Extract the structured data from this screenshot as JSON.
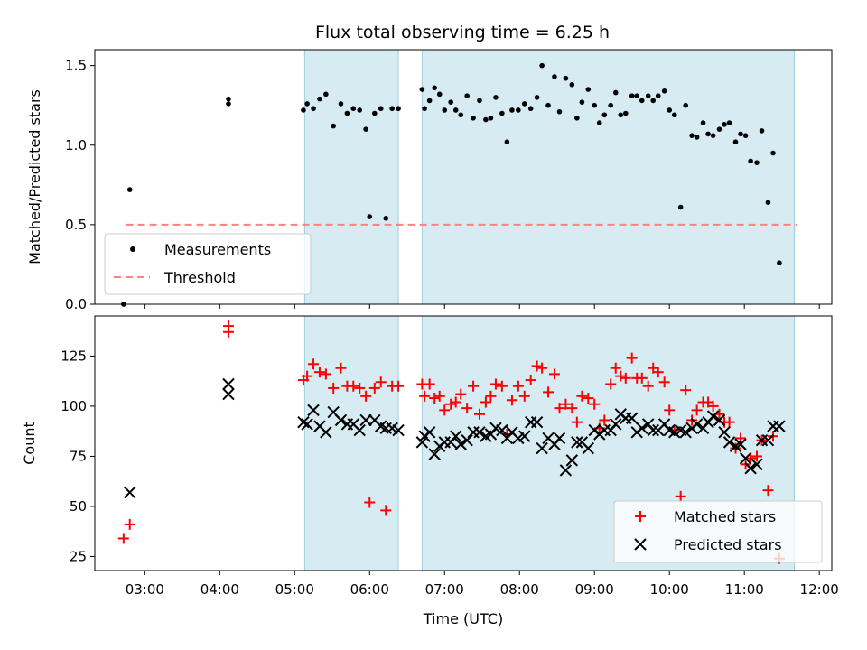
{
  "title": "Flux total observing time = 6.25 h",
  "chart_data": [
    {
      "type": "scatter",
      "ylabel": "Matched/Predicted stars",
      "xlabel": "",
      "ylim": [
        0,
        1.6
      ],
      "yticks": [
        "0.0",
        "0.5",
        "1.0",
        "1.5"
      ],
      "legend_position": "lower-left",
      "threshold": {
        "name": "Threshold",
        "y": 0.5,
        "x_start": "02:45",
        "x_end": "11:42",
        "color": "#ff8080"
      },
      "shaded_intervals": [
        [
          "05:08",
          "06:23"
        ],
        [
          "06:42",
          "11:40"
        ]
      ],
      "series": [
        {
          "name": "Measurements",
          "color": "#000000",
          "marker": "dot",
          "points": [
            [
              "02:43",
              0.0
            ],
            [
              "02:48",
              0.72
            ],
            [
              "04:07",
              1.26
            ],
            [
              "04:07",
              1.29
            ],
            [
              "05:07",
              1.22
            ],
            [
              "05:10",
              1.26
            ],
            [
              "05:15",
              1.23
            ],
            [
              "05:20",
              1.29
            ],
            [
              "05:25",
              1.32
            ],
            [
              "05:31",
              1.12
            ],
            [
              "05:37",
              1.26
            ],
            [
              "05:42",
              1.2
            ],
            [
              "05:47",
              1.23
            ],
            [
              "05:52",
              1.22
            ],
            [
              "05:57",
              1.1
            ],
            [
              "06:00",
              0.55
            ],
            [
              "06:04",
              1.2
            ],
            [
              "06:09",
              1.23
            ],
            [
              "06:13",
              0.54
            ],
            [
              "06:18",
              1.23
            ],
            [
              "06:23",
              1.23
            ],
            [
              "06:42",
              1.35
            ],
            [
              "06:44",
              1.23
            ],
            [
              "06:48",
              1.28
            ],
            [
              "06:52",
              1.36
            ],
            [
              "06:56",
              1.32
            ],
            [
              "07:00",
              1.22
            ],
            [
              "07:05",
              1.27
            ],
            [
              "07:09",
              1.22
            ],
            [
              "07:13",
              1.19
            ],
            [
              "07:18",
              1.31
            ],
            [
              "07:23",
              1.17
            ],
            [
              "07:28",
              1.28
            ],
            [
              "07:33",
              1.16
            ],
            [
              "07:37",
              1.17
            ],
            [
              "07:41",
              1.3
            ],
            [
              "07:46",
              1.2
            ],
            [
              "07:50",
              1.02
            ],
            [
              "07:54",
              1.22
            ],
            [
              "07:59",
              1.22
            ],
            [
              "08:04",
              1.26
            ],
            [
              "08:09",
              1.23
            ],
            [
              "08:14",
              1.3
            ],
            [
              "08:18",
              1.5
            ],
            [
              "08:23",
              1.25
            ],
            [
              "08:28",
              1.43
            ],
            [
              "08:32",
              1.21
            ],
            [
              "08:37",
              1.42
            ],
            [
              "08:42",
              1.38
            ],
            [
              "08:46",
              1.17
            ],
            [
              "08:50",
              1.27
            ],
            [
              "08:55",
              1.35
            ],
            [
              "09:00",
              1.25
            ],
            [
              "09:04",
              1.14
            ],
            [
              "09:08",
              1.19
            ],
            [
              "09:13",
              1.25
            ],
            [
              "09:17",
              1.33
            ],
            [
              "09:21",
              1.19
            ],
            [
              "09:25",
              1.2
            ],
            [
              "09:30",
              1.31
            ],
            [
              "09:34",
              1.31
            ],
            [
              "09:38",
              1.28
            ],
            [
              "09:43",
              1.31
            ],
            [
              "09:47",
              1.28
            ],
            [
              "09:51",
              1.31
            ],
            [
              "09:56",
              1.34
            ],
            [
              "10:00",
              1.22
            ],
            [
              "10:04",
              1.19
            ],
            [
              "10:09",
              0.61
            ],
            [
              "10:13",
              1.25
            ],
            [
              "10:18",
              1.06
            ],
            [
              "10:22",
              1.05
            ],
            [
              "10:27",
              1.14
            ],
            [
              "10:31",
              1.07
            ],
            [
              "10:35",
              1.06
            ],
            [
              "10:40",
              1.1
            ],
            [
              "10:44",
              1.13
            ],
            [
              "10:48",
              1.14
            ],
            [
              "10:53",
              1.02
            ],
            [
              "10:57",
              1.07
            ],
            [
              "11:01",
              1.06
            ],
            [
              "11:05",
              0.9
            ],
            [
              "11:10",
              0.89
            ],
            [
              "11:14",
              1.09
            ],
            [
              "11:19",
              0.64
            ],
            [
              "11:23",
              0.95
            ],
            [
              "11:28",
              0.26
            ]
          ]
        }
      ]
    },
    {
      "type": "scatter",
      "ylabel": "Count",
      "xlabel": "Time (UTC)",
      "ylim": [
        18,
        145
      ],
      "yticks": [
        "25",
        "50",
        "75",
        "100",
        "125"
      ],
      "xlim": [
        "02:20",
        "12:10"
      ],
      "xticks": [
        "03:00",
        "04:00",
        "05:00",
        "06:00",
        "07:00",
        "08:00",
        "09:00",
        "10:00",
        "11:00",
        "12:00"
      ],
      "legend_position": "lower-right",
      "shaded_intervals": [
        [
          "05:08",
          "06:23"
        ],
        [
          "06:42",
          "11:40"
        ]
      ],
      "series": [
        {
          "name": "Matched stars",
          "color": "#ff0000",
          "marker": "plus",
          "points": [
            [
              "02:43",
              34
            ],
            [
              "02:48",
              41
            ],
            [
              "04:07",
              137
            ],
            [
              "04:07",
              140
            ],
            [
              "05:07",
              113
            ],
            [
              "05:10",
              115
            ],
            [
              "05:15",
              121
            ],
            [
              "05:20",
              117
            ],
            [
              "05:25",
              116
            ],
            [
              "05:31",
              109
            ],
            [
              "05:37",
              119
            ],
            [
              "05:42",
              110
            ],
            [
              "05:47",
              110
            ],
            [
              "05:52",
              109
            ],
            [
              "05:57",
              105
            ],
            [
              "06:00",
              52
            ],
            [
              "06:04",
              109
            ],
            [
              "06:09",
              112
            ],
            [
              "06:13",
              48
            ],
            [
              "06:18",
              110
            ],
            [
              "06:23",
              110
            ],
            [
              "06:42",
              111
            ],
            [
              "06:44",
              105
            ],
            [
              "06:48",
              111
            ],
            [
              "06:52",
              104
            ],
            [
              "06:56",
              105
            ],
            [
              "07:00",
              98
            ],
            [
              "07:05",
              101
            ],
            [
              "07:09",
              102
            ],
            [
              "07:13",
              106
            ],
            [
              "07:18",
              99
            ],
            [
              "07:23",
              110
            ],
            [
              "07:28",
              96
            ],
            [
              "07:33",
              102
            ],
            [
              "07:37",
              105
            ],
            [
              "07:41",
              111
            ],
            [
              "07:46",
              110
            ],
            [
              "07:50",
              86
            ],
            [
              "07:54",
              103
            ],
            [
              "07:59",
              110
            ],
            [
              "08:04",
              105
            ],
            [
              "08:09",
              113
            ],
            [
              "08:14",
              120
            ],
            [
              "08:18",
              119
            ],
            [
              "08:23",
              107
            ],
            [
              "08:28",
              116
            ],
            [
              "08:32",
              99
            ],
            [
              "08:37",
              101
            ],
            [
              "08:42",
              99
            ],
            [
              "08:46",
              92
            ],
            [
              "08:50",
              105
            ],
            [
              "08:55",
              104
            ],
            [
              "09:00",
              101
            ],
            [
              "09:04",
              89
            ],
            [
              "09:08",
              93
            ],
            [
              "09:13",
              111
            ],
            [
              "09:17",
              119
            ],
            [
              "09:21",
              115
            ],
            [
              "09:25",
              114
            ],
            [
              "09:30",
              124
            ],
            [
              "09:34",
              114
            ],
            [
              "09:38",
              114
            ],
            [
              "09:43",
              110
            ],
            [
              "09:47",
              119
            ],
            [
              "09:51",
              117
            ],
            [
              "09:56",
              112
            ],
            [
              "10:00",
              98
            ],
            [
              "10:04",
              88
            ],
            [
              "10:09",
              55
            ],
            [
              "10:13",
              108
            ],
            [
              "10:18",
              93
            ],
            [
              "10:22",
              98
            ],
            [
              "10:27",
              102
            ],
            [
              "10:31",
              102
            ],
            [
              "10:35",
              100
            ],
            [
              "10:40",
              96
            ],
            [
              "10:44",
              92
            ],
            [
              "10:48",
              92
            ],
            [
              "10:53",
              79
            ],
            [
              "10:57",
              84
            ],
            [
              "11:01",
              71
            ],
            [
              "11:05",
              74
            ],
            [
              "11:10",
              75
            ],
            [
              "11:14",
              83
            ],
            [
              "11:19",
              58
            ],
            [
              "11:23",
              85
            ],
            [
              "11:28",
              24
            ]
          ]
        },
        {
          "name": "Predicted stars",
          "color": "#000000",
          "marker": "x",
          "points": [
            [
              "02:48",
              57
            ],
            [
              "04:07",
              106
            ],
            [
              "04:07",
              111
            ],
            [
              "05:07",
              92
            ],
            [
              "05:10",
              91
            ],
            [
              "05:15",
              98
            ],
            [
              "05:20",
              90
            ],
            [
              "05:25",
              87
            ],
            [
              "05:31",
              97
            ],
            [
              "05:37",
              93
            ],
            [
              "05:42",
              91
            ],
            [
              "05:47",
              91
            ],
            [
              "05:52",
              88
            ],
            [
              "05:57",
              93
            ],
            [
              "06:04",
              93
            ],
            [
              "06:09",
              90
            ],
            [
              "06:13",
              89
            ],
            [
              "06:18",
              89
            ],
            [
              "06:23",
              88
            ],
            [
              "06:42",
              82
            ],
            [
              "06:44",
              85
            ],
            [
              "06:48",
              87
            ],
            [
              "06:52",
              76
            ],
            [
              "06:56",
              80
            ],
            [
              "07:00",
              82
            ],
            [
              "07:05",
              82
            ],
            [
              "07:09",
              85
            ],
            [
              "07:13",
              81
            ],
            [
              "07:18",
              83
            ],
            [
              "07:23",
              87
            ],
            [
              "07:28",
              87
            ],
            [
              "07:33",
              85
            ],
            [
              "07:37",
              86
            ],
            [
              "07:41",
              89
            ],
            [
              "07:46",
              88
            ],
            [
              "07:50",
              84
            ],
            [
              "07:54",
              87
            ],
            [
              "07:59",
              84
            ],
            [
              "08:04",
              85
            ],
            [
              "08:09",
              92
            ],
            [
              "08:14",
              92
            ],
            [
              "08:18",
              79
            ],
            [
              "08:23",
              84
            ],
            [
              "08:28",
              81
            ],
            [
              "08:32",
              84
            ],
            [
              "08:37",
              68
            ],
            [
              "08:42",
              73
            ],
            [
              "08:46",
              82
            ],
            [
              "08:50",
              82
            ],
            [
              "08:55",
              79
            ],
            [
              "09:00",
              88
            ],
            [
              "09:04",
              86
            ],
            [
              "09:08",
              88
            ],
            [
              "09:13",
              88
            ],
            [
              "09:17",
              91
            ],
            [
              "09:21",
              96
            ],
            [
              "09:25",
              94
            ],
            [
              "09:30",
              94
            ],
            [
              "09:34",
              87
            ],
            [
              "09:38",
              89
            ],
            [
              "09:43",
              91
            ],
            [
              "09:47",
              88
            ],
            [
              "09:51",
              88
            ],
            [
              "09:56",
              91
            ],
            [
              "10:00",
              88
            ],
            [
              "10:04",
              87
            ],
            [
              "10:09",
              88
            ],
            [
              "10:13",
              87
            ],
            [
              "10:18",
              89
            ],
            [
              "10:22",
              91
            ],
            [
              "10:27",
              89
            ],
            [
              "10:31",
              92
            ],
            [
              "10:35",
              95
            ],
            [
              "10:40",
              93
            ],
            [
              "10:44",
              87
            ],
            [
              "10:48",
              82
            ],
            [
              "10:53",
              80
            ],
            [
              "10:57",
              81
            ],
            [
              "11:01",
              74
            ],
            [
              "11:05",
              69
            ],
            [
              "11:10",
              71
            ],
            [
              "11:14",
              83
            ],
            [
              "11:19",
              83
            ],
            [
              "11:23",
              90
            ],
            [
              "11:28",
              90
            ]
          ]
        }
      ]
    }
  ]
}
